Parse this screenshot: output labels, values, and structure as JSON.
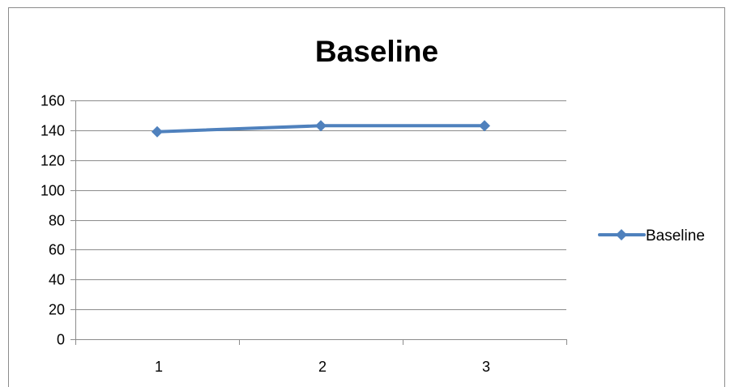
{
  "chart_data": {
    "type": "line",
    "title": "Baseline",
    "xlabel": "",
    "ylabel": "",
    "categories": [
      "1",
      "2",
      "3"
    ],
    "series": [
      {
        "name": "Baseline",
        "values": [
          139,
          143,
          143
        ]
      }
    ],
    "ylim": [
      0,
      160
    ],
    "y_ticks": [
      0,
      20,
      40,
      60,
      80,
      100,
      120,
      140,
      160
    ],
    "grid": true,
    "legend_position": "right",
    "marker": "diamond",
    "colors": {
      "series": "#4f81bd",
      "grid": "#8c8c8c",
      "axis": "#8c8c8c",
      "frame": "#8c8c8c",
      "text": "#000000"
    }
  }
}
